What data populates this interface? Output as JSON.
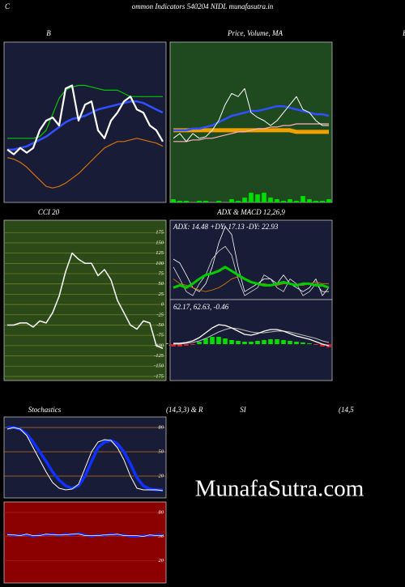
{
  "header": {
    "letter": "C",
    "title": "ommon Indicators 540204 NIDL munafasutra.in"
  },
  "edge_label": "B",
  "watermark": "MunafaSutra.com",
  "chart_data": [
    {
      "type": "line",
      "title": "B",
      "categories": [
        null,
        null,
        null,
        null,
        null,
        null,
        null,
        null,
        null,
        null,
        null,
        null,
        null,
        null,
        null,
        null,
        null,
        null,
        null,
        null,
        null,
        null,
        null,
        null,
        null
      ],
      "ylim": [
        0,
        100
      ],
      "series": [
        {
          "name": "upper",
          "color": "#00c800",
          "width": 1.2,
          "values": [
            40,
            40,
            40,
            40,
            40,
            41,
            45,
            55,
            65,
            70,
            72,
            73,
            73,
            72,
            71,
            70,
            70,
            70,
            68,
            66,
            66,
            66,
            66,
            66,
            66
          ]
        },
        {
          "name": "middle",
          "color": "#3050ff",
          "width": 2.5,
          "values": [
            33,
            33,
            34,
            35,
            37,
            39,
            41,
            44,
            47,
            50,
            52,
            53,
            54,
            56,
            58,
            59,
            60,
            61,
            62,
            63,
            63,
            62,
            60,
            58,
            56
          ]
        },
        {
          "name": "lower",
          "color": "#d07010",
          "width": 1.2,
          "values": [
            28,
            27,
            25,
            22,
            18,
            14,
            10,
            9,
            10,
            12,
            15,
            18,
            22,
            26,
            30,
            34,
            36,
            38,
            38,
            39,
            40,
            39,
            38,
            37,
            35
          ]
        },
        {
          "name": "price",
          "color": "#ffffff",
          "width": 2.2,
          "values": [
            33,
            30,
            34,
            31,
            34,
            45,
            51,
            53,
            48,
            71,
            73,
            51,
            61,
            63,
            45,
            40,
            51,
            56,
            63,
            66,
            58,
            56,
            48,
            45,
            38
          ]
        }
      ]
    },
    {
      "type": "line",
      "title": "Price, Volume, MA",
      "categories": [
        null,
        null,
        null,
        null,
        null,
        null,
        null,
        null,
        null,
        null,
        null,
        null,
        null,
        null,
        null,
        null,
        null,
        null,
        null,
        null,
        null,
        null,
        null,
        null,
        null
      ],
      "ylim": [
        0,
        100
      ],
      "series": [
        {
          "name": "volume",
          "type": "bar",
          "color": "#00e000",
          "values": [
            2,
            1,
            1,
            0,
            1,
            1,
            0,
            1,
            0,
            2,
            1,
            3,
            6,
            5,
            6,
            3,
            2,
            1,
            2,
            1,
            4,
            2,
            1,
            1,
            2
          ]
        },
        {
          "name": "ma-long",
          "color": "#f0a000",
          "width": 5,
          "values": [
            45,
            45,
            45,
            45,
            45,
            45,
            45,
            45,
            45,
            45,
            45,
            45,
            45,
            45,
            45,
            45,
            45,
            45,
            45,
            44,
            44,
            44,
            44,
            44,
            44
          ]
        },
        {
          "name": "ma-short",
          "color": "#ffb0c0",
          "width": 1.2,
          "values": [
            38,
            38,
            38,
            39,
            39,
            40,
            40,
            41,
            42,
            43,
            44,
            44,
            45,
            46,
            46,
            47,
            47,
            48,
            48,
            49,
            49,
            49,
            49,
            49,
            49
          ]
        },
        {
          "name": "ma-mid",
          "color": "#3050ff",
          "width": 2.5,
          "values": [
            45,
            45,
            45,
            46,
            46,
            47,
            48,
            50,
            52,
            54,
            55,
            56,
            57,
            57,
            58,
            59,
            60,
            60,
            59,
            58,
            57,
            56,
            55,
            55,
            54
          ]
        },
        {
          "name": "price",
          "color": "#ffffff",
          "width": 1,
          "values": [
            40,
            43,
            38,
            43,
            40,
            41,
            45,
            51,
            61,
            68,
            66,
            71,
            56,
            53,
            51,
            48,
            51,
            56,
            61,
            66,
            58,
            56,
            51,
            48,
            48
          ]
        }
      ]
    },
    {
      "type": "line",
      "title": "CCI 20",
      "end_label": true,
      "grid": true,
      "grid_color": "#6d7d2c",
      "categories": [
        null,
        null,
        null,
        null,
        null,
        null,
        null,
        null,
        null,
        null,
        null,
        null,
        null,
        null,
        null,
        null,
        null,
        null,
        null,
        null,
        null,
        null,
        null,
        null,
        null
      ],
      "ylim": [
        -185,
        205
      ],
      "yticks": [
        175,
        150,
        125,
        100,
        75,
        50,
        25,
        0,
        -25,
        -50,
        -75,
        -100,
        -125,
        -150,
        -175
      ],
      "series": [
        {
          "name": "cci",
          "color": "#ffffff",
          "width": 1.5,
          "values": [
            -50,
            -50,
            -45,
            -45,
            -55,
            -40,
            -45,
            -20,
            20,
            80,
            125,
            110,
            100,
            100,
            70,
            85,
            60,
            10,
            -20,
            -50,
            -60,
            -40,
            -45,
            -100,
            -107
          ]
        }
      ]
    },
    {
      "type": "line",
      "title": "ADX  & MACD 12,26,9",
      "subtitle": "ADX: 14.48  +DY: 17.13 -DY: 22.93",
      "categories": [
        null,
        null,
        null,
        null,
        null,
        null,
        null,
        null,
        null,
        null,
        null,
        null,
        null,
        null,
        null,
        null,
        null,
        null,
        null,
        null,
        null,
        null,
        null,
        null,
        null
      ],
      "ylim": [
        0,
        100
      ],
      "series": [
        {
          "name": "plus-dy",
          "color": "#ffffff",
          "width": 0.8,
          "values": [
            51,
            46,
            31,
            15,
            10,
            20,
            41,
            71,
            92,
            82,
            41,
            10,
            15,
            20,
            26,
            26,
            20,
            31,
            20,
            15,
            10,
            15,
            26,
            5,
            15
          ]
        },
        {
          "name": "minus-dy",
          "color": "#dddddd",
          "width": 0.8,
          "values": [
            41,
            26,
            10,
            5,
            20,
            31,
            51,
            61,
            67,
            56,
            26,
            5,
            10,
            15,
            31,
            26,
            15,
            10,
            26,
            20,
            5,
            10,
            20,
            10,
            10
          ]
        },
        {
          "name": "adx-avg",
          "color": "#c07010",
          "width": 1,
          "values": [
            26,
            20,
            18,
            15,
            12,
            10,
            12,
            15,
            20,
            26,
            29,
            26,
            22,
            20,
            20,
            18,
            18,
            20,
            20,
            18,
            18,
            20,
            22,
            20,
            20
          ]
        },
        {
          "name": "adx",
          "color": "#00d000",
          "width": 3,
          "values": [
            15,
            18,
            15,
            20,
            26,
            31,
            33,
            36,
            41,
            36,
            31,
            26,
            22,
            20,
            18,
            18,
            20,
            22,
            20,
            18,
            20,
            20,
            18,
            18,
            15
          ]
        }
      ]
    },
    {
      "type": "line",
      "title": "62.17,  62.63,  -0.46",
      "categories": [
        null,
        null,
        null,
        null,
        null,
        null,
        null,
        null,
        null,
        null,
        null,
        null,
        null,
        null,
        null,
        null,
        null,
        null,
        null,
        null,
        null,
        null,
        null,
        null,
        null
      ],
      "ylim": [
        -45,
        55
      ],
      "series": [
        {
          "name": "histogram",
          "type": "bar",
          "pos_color": "#00e000",
          "neg_color": "#e02020",
          "values": [
            -3,
            -3,
            -2,
            -1,
            3,
            7,
            9,
            9,
            7,
            5,
            4,
            3,
            3,
            4,
            5,
            6,
            6,
            5,
            4,
            3,
            2,
            1,
            -1,
            -3,
            -4
          ]
        },
        {
          "name": "signal",
          "color": "#bbbbbb",
          "width": 1,
          "values": [
            0,
            0,
            1,
            2,
            4,
            7,
            11,
            15,
            18,
            20,
            19,
            17,
            15,
            14,
            14,
            15,
            16,
            16,
            15,
            13,
            11,
            9,
            7,
            4,
            2
          ]
        },
        {
          "name": "macd",
          "color": "#ffffff",
          "width": 1.3,
          "values": [
            1,
            1,
            2,
            4,
            8,
            14,
            20,
            24,
            23,
            20,
            16,
            12,
            11,
            13,
            16,
            18,
            18,
            16,
            13,
            10,
            8,
            6,
            3,
            0,
            -2
          ]
        }
      ]
    },
    {
      "type": "line",
      "title": "Stochastics",
      "subtitle": "(14,3,3) & R",
      "grid": true,
      "grid_color": "#c07010",
      "categories": [
        null,
        null,
        null,
        null,
        null,
        null,
        null,
        null,
        null,
        null,
        null,
        null,
        null,
        null,
        null,
        null,
        null,
        null,
        null,
        null,
        null,
        null,
        null,
        null,
        null
      ],
      "ylim": [
        -7,
        93
      ],
      "yticks": [
        80,
        50,
        20
      ],
      "series": [
        {
          "name": "d",
          "color": "#1030ff",
          "width": 3.5,
          "values": [
            80,
            80,
            78,
            72,
            62,
            50,
            38,
            25,
            15,
            8,
            5,
            8,
            20,
            38,
            55,
            62,
            64,
            60,
            50,
            35,
            18,
            8,
            4,
            3,
            3
          ]
        },
        {
          "name": "k",
          "color": "#ffffff",
          "width": 1,
          "values": [
            78,
            80,
            78,
            70,
            55,
            40,
            25,
            12,
            5,
            3,
            4,
            10,
            30,
            50,
            62,
            65,
            64,
            55,
            40,
            20,
            5,
            3,
            3,
            3,
            2
          ]
        }
      ]
    },
    {
      "type": "line",
      "title": "SI",
      "subtitle": "(14,5",
      "grid": true,
      "grid_color": "#a02020",
      "categories": [
        null,
        null,
        null,
        null,
        null,
        null,
        null,
        null,
        null,
        null,
        null,
        null,
        null,
        null,
        null,
        null,
        null,
        null,
        null,
        null,
        null,
        null,
        null,
        null,
        null
      ],
      "ylim": [
        -8,
        93
      ],
      "yticks": [
        80,
        50,
        20
      ],
      "series": [
        {
          "name": "rsi-avg",
          "color": "#1030ff",
          "width": 2.5,
          "values": [
            53,
            51,
            52,
            52,
            50,
            52,
            52,
            53,
            51,
            53,
            52,
            54,
            52,
            50,
            52,
            51,
            53,
            52,
            52,
            50,
            50,
            51,
            51,
            52,
            52
          ]
        },
        {
          "name": "rsi",
          "color": "#ffffff",
          "width": 0.7,
          "values": [
            52,
            52,
            51,
            53,
            51,
            51,
            53,
            52,
            52,
            52,
            53,
            53,
            51,
            51,
            51,
            52,
            52,
            53,
            51,
            51,
            51,
            50,
            52,
            51,
            51
          ]
        }
      ]
    }
  ]
}
